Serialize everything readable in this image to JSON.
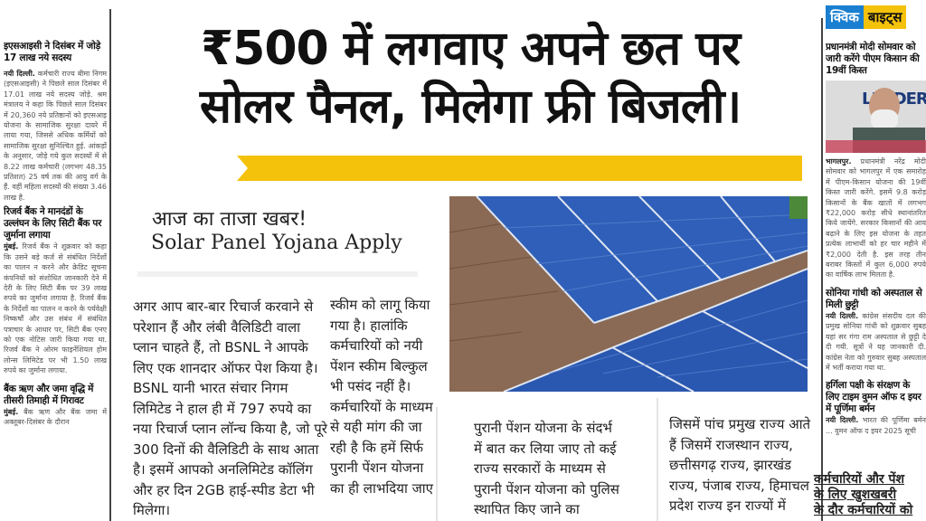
{
  "left_column": [
    {
      "title": "इएसआइसी ने दिसंबर में जोड़े 17 लाख नये सदस्य",
      "dateline": "नयी दिल्ली.",
      "body": "कर्मचारी राज्य बीमा निगम (इएसआइसी) ने पिछले साल दिसंबर में 17.01 लाख नये सदस्य जोड़े. श्रम मंत्रालय ने कहा कि पिछले साल दिसंबर में 20,360 नये प्रतिष्ठानों को इएसआइ योजना के सामाजिक सुरक्षा दायरे में लाया गया, जिससे अधिक कर्मियों को सामाजिक सुरक्षा सुनिश्चित हुई. आंकड़ों के अनुसार, जोड़े गये कुल सदस्यों में से 8.22 लाख कर्मचारी (लगभग 48.35 प्रतिशत) 25 वर्ष तक की आयु वर्ग के हैं. वहीं महिला सदस्यों की संख्या 3.46 लाख है."
    },
    {
      "title": "रिजर्व बैंक ने मानदंडों के उल्लंघन के लिए सिटी बैंक पर जुर्माना लगाया",
      "dateline": "मुंबई.",
      "body": "रिजर्व बैंक ने शुक्रवार को कहा कि उसने बड़े कर्ज से संबंधित निर्देशों का पालन न करने और क्रेडिट सूचना कंपनियों को संशोधित जानकारी देने में देरी के लिए सिटी बैंक पर 39 लाख रुपये का जुर्माना लगाया है. रिजर्व बैंक के निर्देशों का पालन न करने के पर्यवेक्षी निष्कर्षों और उस संबंध में संबंधित पत्राचार के आधार पर, सिटी बैंक एनए को एक नोटिस जारी किया गया था. रिजर्व बैंक ने ओरम फाइनेंशियल होम लोन्स लिमिटेड पर भी 1.50 लाख रुपये का जुर्माना लगाया."
    },
    {
      "title": "बैंक ऋण और जमा वृद्धि में तीसरी तिमाही में गिरावट",
      "dateline": "मुंबई.",
      "body": "बैंक ऋण और बैंक जमा में अक्तूबर-दिसंबर के दौरान"
    }
  ],
  "headline": {
    "line1": "₹500 में लगवाए अपने छत पर",
    "line2": "सोलर पैनल, मिलेगा फ्री बिजली।"
  },
  "accent_color": "#f5c20b",
  "kicker": "आज का ताजा खबर!",
  "subtitle": "Solar Panel Yojana Apply",
  "article_col1": "अगर आप बार-बार रिचार्ज करवाने से परेशान हैं और लंबी वैलिडिटी वाला प्लान चाहते हैं, तो BSNL ने आपके लिए एक शानदार ऑफर पेश किया है। BSNL यानी भारत संचार निगम लिमिटेड ने हाल ही में 797 रुपये का नया रिचार्ज प्लान लॉन्च किया है, जो पूरे 300 दिनों की वैलिडिटी के साथ आता है। इसमें आपको अनलिमिटेड कॉलिंग और हर दिन 2GB हाई-स्पीड डेटा भी मिलेगा।",
  "article_col2": "स्कीम को लागू किया गया है। हालांकि कर्मचारियों को नयी पेंशन स्कीम बिल्कुल भी पसंद नहीं है। कर्मचारियों के माध्यम से यही मांग की जा रही है कि हमें सिर्फ पुरानी पेंशन योजना का ही लाभदिया जाए",
  "article_col3": "पुरानी पेंशन योजना के संदर्भ में बात कर लिया जाए तो कई राज्य सरकारों के माध्यम से पुरानी पेंशन योजना को पुलिस स्थापित किए जाने का महत्वपूर्ण निर्णय लिया",
  "article_col4": "जिसमें पांच प्रमुख राज्य आते हैं जिसमें राजस्थान राज्य, छत्तीसगढ़ राज्य, झारखंड राज्य, पंजाब राज्य, हिमाचल प्रदेश राज्य इन राज्यों में सरकार",
  "right_column": {
    "badge_left": "क्विक",
    "badge_right": "बाइट्स",
    "badge_colors": {
      "left": "#1a7fd0",
      "right": "#f5c20b"
    },
    "photo_sign": "LEADERSHIP",
    "stories": [
      {
        "title": "प्रधानमंत्री मोदी सोमवार को जारी करेंगे पीएम किसान की 19वीं किस्त",
        "dateline": "भागलपुर.",
        "body": "प्रधानमंत्री नरेंद्र मोदी सोमवार को भागलपुर में एक समारोह में पीएम-किसान योजना की 19वीं किस्त जारी करेंगे. इसमें 9.8 करोड़ किसानों के बैंक खातों में लगभग ₹22,000 करोड़ सीधे स्थानांतरित किये जायेंगे. सरकार किसानों की आय बढ़ाने के लिए इस योजना के तहत प्रत्येक लाभार्थी को हर चार महीने में ₹2,000 देती है. इस तरह तीन बराबर किस्तों में कुल 6,000 रुपये का वार्षिक लाभ मिलता है."
      },
      {
        "title": "सोनिया गांधी को अस्पताल से मिली छुट्टी",
        "dateline": "नयी दिल्ली.",
        "body": "कांग्रेस संसदीय दल की प्रमुख सोनिया गांधी को शुक्रवार सुबह यहां सर गंगा राम अस्पताल से छुट्टी दे दी गयी. सूत्रों ने यह जानकारी दी. कांग्रेस नेता को गुरुवार सुबह अस्पताल में भर्ती कराया गया था."
      },
      {
        "title": "हर्गिला पक्षी के संरक्षण के लिए टाइम वुमन ऑफ द इयर में पूर्णिमा बर्मन",
        "dateline": "नयी दिल्ली.",
        "body": "भारत की पूर्णिमा बर्मन ... वुमन ऑफ द इयर 2025 सूची"
      }
    ]
  },
  "overlay_text": [
    "कर्मचारियों और पेंश",
    "के लिए खुशखबरी",
    "के दौर कर्मचारियों को"
  ]
}
